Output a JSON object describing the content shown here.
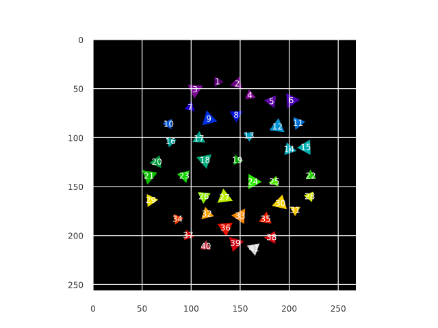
{
  "chart_data": {
    "type": "image",
    "title": "",
    "xlabel": "",
    "ylabel": "",
    "image_size": [
      268,
      256
    ],
    "xlim": [
      0,
      268
    ],
    "ylim": [
      256,
      0
    ],
    "x_ticks": [
      0,
      50,
      100,
      150,
      200,
      250
    ],
    "y_ticks": [
      0,
      50,
      100,
      150,
      200,
      250
    ],
    "grid": true,
    "background": "#000000",
    "grid_color": "#ffffff",
    "segments": [
      {
        "label": "1",
        "x": 127,
        "y": 43,
        "color": "#5a0075"
      },
      {
        "label": "2",
        "x": 147,
        "y": 45,
        "color": "#6a0083"
      },
      {
        "label": "3",
        "x": 104,
        "y": 51,
        "color": "#7d0a96"
      },
      {
        "label": "4",
        "x": 160,
        "y": 57,
        "color": "#8a0a9c"
      },
      {
        "label": "5",
        "x": 182,
        "y": 63,
        "color": "#5e06a8"
      },
      {
        "label": "6",
        "x": 202,
        "y": 62,
        "color": "#4a00b4"
      },
      {
        "label": "7",
        "x": 99,
        "y": 69,
        "color": "#2000c8"
      },
      {
        "label": "8",
        "x": 146,
        "y": 77,
        "color": "#0010d8"
      },
      {
        "label": "9",
        "x": 118,
        "y": 81,
        "color": "#0030e0"
      },
      {
        "label": "10",
        "x": 77,
        "y": 86,
        "color": "#0a58d8"
      },
      {
        "label": "11",
        "x": 209,
        "y": 85,
        "color": "#0070d8"
      },
      {
        "label": "12",
        "x": 188,
        "y": 89,
        "color": "#0090d0"
      },
      {
        "label": "13",
        "x": 159,
        "y": 98,
        "color": "#00a0c8"
      },
      {
        "label": "14",
        "x": 200,
        "y": 112,
        "color": "#00a8b8"
      },
      {
        "label": "15",
        "x": 217,
        "y": 110,
        "color": "#00b0b0"
      },
      {
        "label": "16",
        "x": 79,
        "y": 104,
        "color": "#00a09c"
      },
      {
        "label": "17",
        "x": 108,
        "y": 101,
        "color": "#00a890"
      },
      {
        "label": "18",
        "x": 114,
        "y": 123,
        "color": "#00a878"
      },
      {
        "label": "19",
        "x": 147,
        "y": 123,
        "color": "#00a000"
      },
      {
        "label": "20",
        "x": 65,
        "y": 125,
        "color": "#009c40"
      },
      {
        "label": "21",
        "x": 57,
        "y": 139,
        "color": "#10c000"
      },
      {
        "label": "22",
        "x": 222,
        "y": 139,
        "color": "#20d000"
      },
      {
        "label": "23",
        "x": 93,
        "y": 139,
        "color": "#10d400"
      },
      {
        "label": "24",
        "x": 163,
        "y": 145,
        "color": "#30e800"
      },
      {
        "label": "25",
        "x": 185,
        "y": 145,
        "color": "#50ec00"
      },
      {
        "label": "26",
        "x": 113,
        "y": 160,
        "color": "#90f000"
      },
      {
        "label": "27",
        "x": 134,
        "y": 161,
        "color": "#c0f000"
      },
      {
        "label": "28",
        "x": 221,
        "y": 160,
        "color": "#d8ec00"
      },
      {
        "label": "29",
        "x": 59,
        "y": 164,
        "color": "#f0e000"
      },
      {
        "label": "30",
        "x": 191,
        "y": 167,
        "color": "#f8d000"
      },
      {
        "label": "31",
        "x": 206,
        "y": 174,
        "color": "#f4c400"
      },
      {
        "label": "32",
        "x": 116,
        "y": 178,
        "color": "#f8a000"
      },
      {
        "label": "33",
        "x": 150,
        "y": 180,
        "color": "#f88800"
      },
      {
        "label": "34",
        "x": 86,
        "y": 183,
        "color": "#f04000"
      },
      {
        "label": "35",
        "x": 176,
        "y": 183,
        "color": "#f02000"
      },
      {
        "label": "36",
        "x": 135,
        "y": 192,
        "color": "#e81000"
      },
      {
        "label": "37",
        "x": 97,
        "y": 200,
        "color": "#d80000"
      },
      {
        "label": "38",
        "x": 182,
        "y": 202,
        "color": "#d80810"
      },
      {
        "label": "39",
        "x": 145,
        "y": 208,
        "color": "#d00010"
      },
      {
        "label": "40",
        "x": 115,
        "y": 211,
        "color": "#c83848"
      },
      {
        "label": "41",
        "x": 164,
        "y": 213,
        "color": "#d8d8d8"
      }
    ]
  }
}
